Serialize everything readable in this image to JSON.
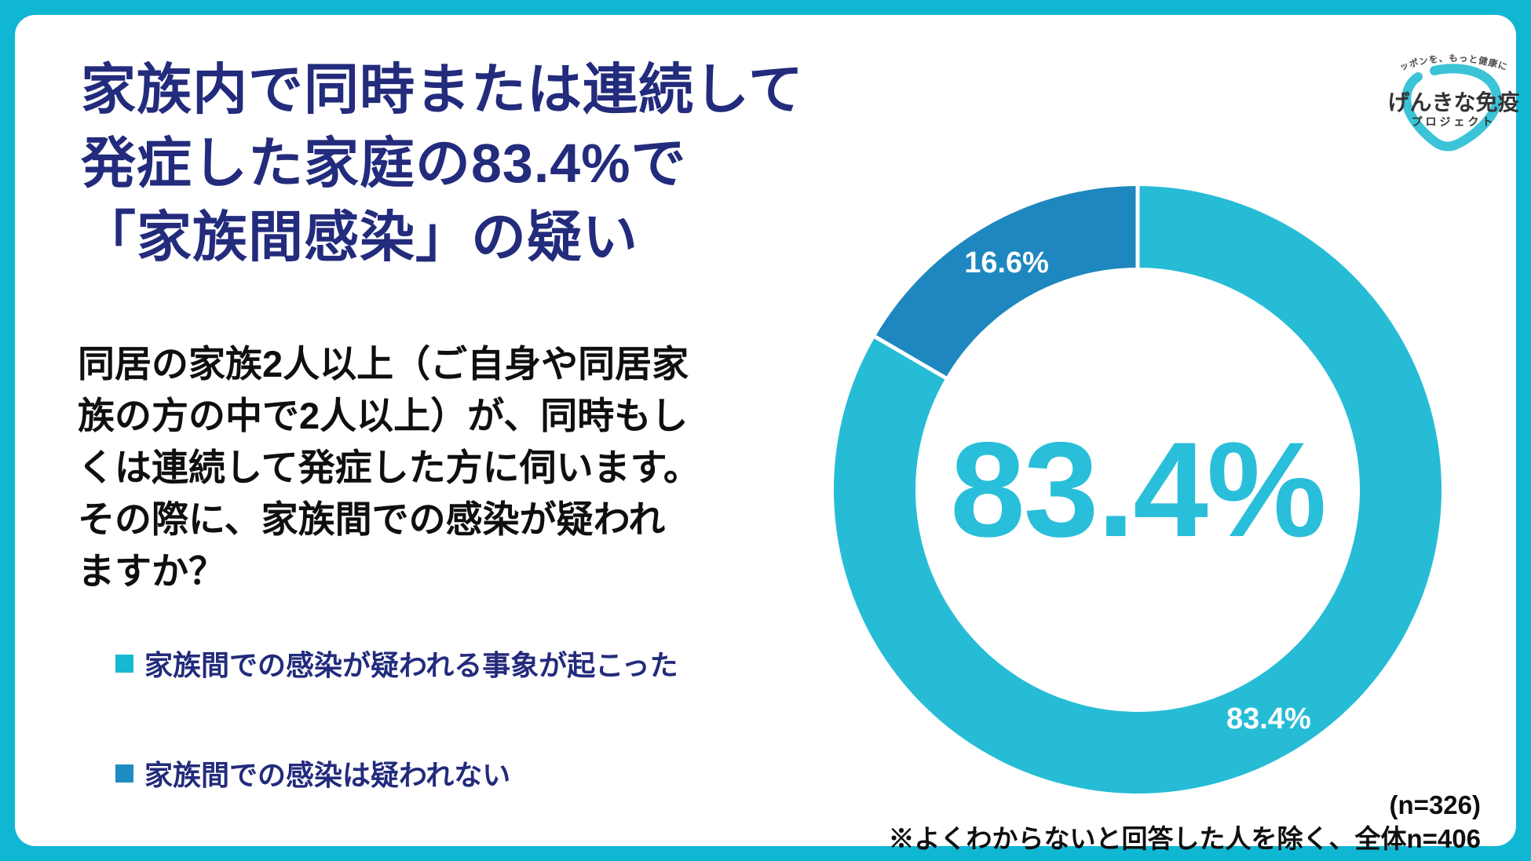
{
  "page": {
    "title": "家族内で同時または連続して\n発症した家庭の83.4%で\n「家族間感染」の疑い",
    "question": "同居の家族2人以上（ご自身や同居家\n族の方の中で2人以上）が、同時もし\nくは連続して発症した方に伺います。\nその際に、家族間での感染が疑われ\nますか？"
  },
  "legend": {
    "items": [
      {
        "label": "家族間での感染が疑われる事象が起こった",
        "color": "#18B8D2"
      },
      {
        "label": "家族間での感染は疑われない",
        "color": "#1E8CC2"
      }
    ]
  },
  "chart_data": {
    "type": "pie",
    "subtype": "donut",
    "title": "家族内で同時または連続して発症した家庭の83.4%で「家族間感染」の疑い",
    "categories": [
      "家族間での感染が疑われる事象が起こった",
      "家族間での感染は疑われない"
    ],
    "values": [
      83.4,
      16.6
    ],
    "unit": "%",
    "slice_labels": [
      "83.4%",
      "16.6%"
    ],
    "slice_colors": [
      "#26BCD6",
      "#1E87BF"
    ],
    "slice_label_color": "#ffffff",
    "center_label": "83.4%",
    "start_angle_deg": -90,
    "direction": "clockwise",
    "legend_position": "left"
  },
  "footnote": {
    "n_label": "(n=326)",
    "note": "※よくわからないと回答した人を除く、全体n=406"
  },
  "logo": {
    "tagline": "ニッポンを、もっと健康に。",
    "name": "げんきな免疫",
    "subname": "プロジェクト",
    "shield_color": "#3BC3D8"
  },
  "colors": {
    "frame": "#10B7D3",
    "sheet": "#FFFFFF",
    "title_navy": "#232B7C",
    "body_black": "#0F0F0F",
    "center_label_cyan": "#29BED9"
  }
}
